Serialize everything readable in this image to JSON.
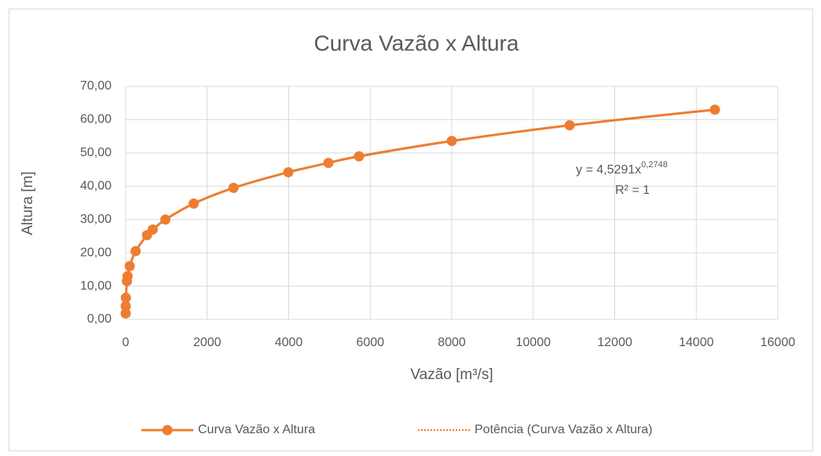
{
  "chart_data": {
    "type": "scatter",
    "title": "Curva Vazão x Altura",
    "x_label": "Vazão [m³/s]",
    "y_label": "Altura [m]",
    "xlim": [
      0,
      16000
    ],
    "xticks": [
      0,
      2000,
      4000,
      6000,
      8000,
      10000,
      12000,
      14000,
      16000
    ],
    "ylim": [
      0,
      70
    ],
    "yticks": [
      {
        "value": 0,
        "label": "0,00"
      },
      {
        "value": 10,
        "label": "10,00"
      },
      {
        "value": 20,
        "label": "20,00"
      },
      {
        "value": 30,
        "label": "30,00"
      },
      {
        "value": 40,
        "label": "40,00"
      },
      {
        "value": 50,
        "label": "50,00"
      },
      {
        "value": 60,
        "label": "60,00"
      },
      {
        "value": 70,
        "label": "70,00"
      }
    ],
    "grid": true,
    "legend": "bottom",
    "series": [
      {
        "name": "Curva Vazão x Altura",
        "color": "#ED7D31",
        "x": [
          0.04,
          0.6,
          3.7,
          30,
          46,
          99,
          243,
          523,
          663,
          974,
          1669,
          2645,
          3990,
          4973,
          5725,
          8000,
          10892,
          14458
        ],
        "values": [
          1.8,
          4,
          6.5,
          11.5,
          13,
          16,
          20.5,
          25.3,
          27,
          30,
          34.8,
          39.5,
          44.2,
          47,
          49,
          53.6,
          58.3,
          63
        ]
      }
    ],
    "trendline": {
      "name": "Potência (Curva Vazão x Altura)",
      "color": "#ED7D31",
      "coefficients": [
        4.5291,
        0.2748
      ],
      "equation": "y = 4,5291x",
      "exponent": "0,2748",
      "r_squared": "R² = 1"
    }
  }
}
